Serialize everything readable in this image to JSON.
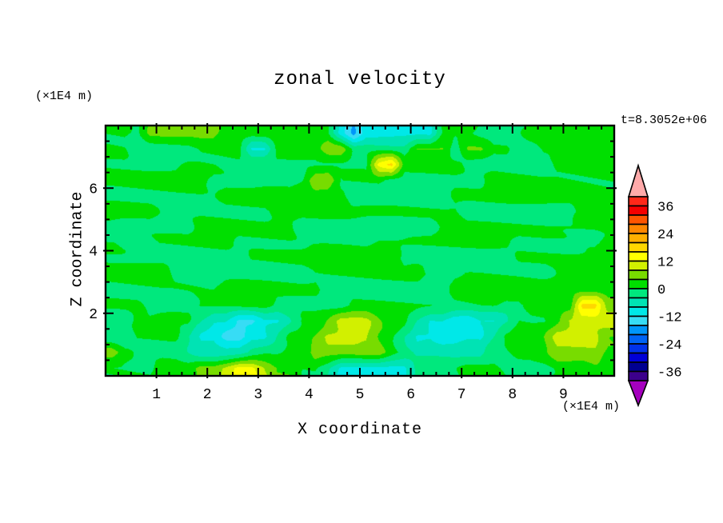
{
  "title": "zonal velocity",
  "annotations": {
    "time_label": "t=8.3052e+06",
    "z_unit_label": "(×1E4 m)",
    "x_unit_label": "(×1E4 m)"
  },
  "axes": {
    "x": {
      "label": "X coordinate",
      "min": 0,
      "max": 10,
      "major_ticks": [
        1,
        2,
        3,
        4,
        5,
        6,
        7,
        8,
        9
      ],
      "minor_step": 0.25
    },
    "z": {
      "label": "Z coordinate",
      "min": 0,
      "max": 8,
      "major_ticks": [
        2,
        4,
        6
      ],
      "minor_step": 0.5
    }
  },
  "chart_data": {
    "type": "heatmap",
    "title": "zonal velocity",
    "xlabel": "X coordinate",
    "ylabel": "Z coordinate",
    "x_range": [
      0,
      10
    ],
    "z_range": [
      0,
      8
    ],
    "axis_unit_scale": "(×1E4 m)",
    "time": "t=8.3052e+06",
    "contour_interval": 4,
    "colorbar": {
      "min": -40,
      "max": 40,
      "step": 4,
      "labels": [
        36,
        24,
        12,
        0,
        -12,
        -24,
        -36
      ],
      "over_arrow_color": "#FFAAAA",
      "under_arrow_color": "#A500BE"
    },
    "palette_low_to_high": [
      "#3C008C",
      "#000091",
      "#0000D7",
      "#0032EB",
      "#0064F5",
      "#0096FA",
      "#37DCF5",
      "#00E8E8",
      "#00E3B4",
      "#00E87D",
      "#00DF00",
      "#78DC00",
      "#D2F000",
      "#FFFF00",
      "#FFD700",
      "#FFAF00",
      "#FF8700",
      "#FF5500",
      "#F50000",
      "#FF2819"
    ],
    "grid_x_start": 0.125,
    "grid_x_step": 0.25,
    "grid_nx": 40,
    "grid_rle": [
      {
        "z": 7.75,
        "runs": [
          [
            2,
            1
          ],
          [
            1,
            -1
          ],
          [
            6,
            5
          ],
          [
            9,
            1
          ],
          [
            1,
            -9
          ],
          [
            1,
            -17
          ],
          [
            6,
            -9
          ],
          [
            3,
            1
          ],
          [
            4,
            -1
          ],
          [
            7,
            1
          ]
        ]
      },
      {
        "z": 7.25,
        "runs": [
          [
            2,
            1
          ],
          [
            5,
            -1
          ],
          [
            4,
            1
          ],
          [
            2,
            -9
          ],
          [
            4,
            1
          ],
          [
            2,
            6
          ],
          [
            5,
            -2
          ],
          [
            3,
            5
          ],
          [
            1,
            -2
          ],
          [
            2,
            5
          ],
          [
            2,
            1
          ],
          [
            2,
            -1
          ],
          [
            6,
            1
          ]
        ]
      },
      {
        "z": 6.75,
        "runs": [
          [
            6,
            -1
          ],
          [
            7,
            1
          ],
          [
            8,
            -1
          ],
          [
            1,
            13
          ],
          [
            1,
            17
          ],
          [
            5,
            1
          ],
          [
            7,
            -1
          ],
          [
            5,
            1
          ]
        ]
      },
      {
        "z": 6.25,
        "runs": [
          [
            8,
            1
          ],
          [
            7,
            -1
          ],
          [
            1,
            1
          ],
          [
            2,
            9
          ],
          [
            4,
            1
          ],
          [
            8,
            -2
          ],
          [
            10,
            1
          ]
        ]
      },
      {
        "z": 5.75,
        "runs": [
          [
            9,
            -1
          ],
          [
            10,
            1
          ],
          [
            8,
            -2
          ],
          [
            13,
            1
          ]
        ]
      },
      {
        "z": 5.25,
        "runs": [
          [
            4,
            1
          ],
          [
            9,
            -1
          ],
          [
            15,
            1
          ],
          [
            9,
            -2
          ],
          [
            3,
            1
          ]
        ]
      },
      {
        "z": 4.75,
        "runs": [
          [
            7,
            -1
          ],
          [
            8,
            1
          ],
          [
            11,
            -2
          ],
          [
            14,
            1
          ]
        ]
      },
      {
        "z": 4.25,
        "runs": [
          [
            10,
            1
          ],
          [
            11,
            -1
          ],
          [
            11,
            1
          ],
          [
            7,
            -1
          ],
          [
            1,
            1
          ]
        ]
      },
      {
        "z": 3.75,
        "runs": [
          [
            11,
            -1
          ],
          [
            12,
            1
          ],
          [
            9,
            -2
          ],
          [
            8,
            1
          ]
        ]
      },
      {
        "z": 3.25,
        "runs": [
          [
            5,
            1
          ],
          [
            11,
            -1
          ],
          [
            9,
            1
          ],
          [
            10,
            -1
          ],
          [
            5,
            1
          ]
        ]
      },
      {
        "z": 2.75,
        "runs": [
          [
            9,
            -1
          ],
          [
            8,
            1
          ],
          [
            10,
            -2
          ],
          [
            13,
            1
          ]
        ]
      },
      {
        "z": 2.25,
        "runs": [
          [
            3,
            1
          ],
          [
            4,
            -1
          ],
          [
            6,
            1
          ],
          [
            6,
            -2
          ],
          [
            12,
            1
          ],
          [
            2,
            -1
          ],
          [
            4,
            1
          ],
          [
            2,
            17
          ],
          [
            1,
            5
          ]
        ]
      },
      {
        "z": 1.75,
        "runs": [
          [
            2,
            -2
          ],
          [
            5,
            1
          ],
          [
            1,
            -4
          ],
          [
            2,
            -8
          ],
          [
            2,
            -13
          ],
          [
            2,
            -8
          ],
          [
            1,
            -4
          ],
          [
            2,
            1
          ],
          [
            1,
            4
          ],
          [
            3,
            9
          ],
          [
            1,
            4
          ],
          [
            2,
            1
          ],
          [
            1,
            -4
          ],
          [
            2,
            -8
          ],
          [
            2,
            -12
          ],
          [
            2,
            -8
          ],
          [
            1,
            -4
          ],
          [
            3,
            1
          ],
          [
            1,
            4
          ],
          [
            3,
            9
          ],
          [
            1,
            11
          ]
        ]
      },
      {
        "z": 1.25,
        "runs": [
          [
            2,
            -3
          ],
          [
            4,
            1
          ],
          [
            1,
            -4
          ],
          [
            2,
            -9
          ],
          [
            2,
            -14
          ],
          [
            2,
            -9
          ],
          [
            1,
            -4
          ],
          [
            2,
            1
          ],
          [
            1,
            4
          ],
          [
            4,
            9
          ],
          [
            1,
            4
          ],
          [
            1,
            1
          ],
          [
            1,
            -4
          ],
          [
            2,
            -9
          ],
          [
            2,
            -11
          ],
          [
            2,
            -9
          ],
          [
            1,
            -4
          ],
          [
            3,
            1
          ],
          [
            1,
            4
          ],
          [
            4,
            10
          ],
          [
            1,
            5
          ]
        ]
      },
      {
        "z": 0.75,
        "runs": [
          [
            1,
            6
          ],
          [
            1,
            1
          ],
          [
            4,
            -1
          ],
          [
            1,
            -3
          ],
          [
            4,
            -6
          ],
          [
            1,
            -3
          ],
          [
            2,
            -1
          ],
          [
            2,
            1
          ],
          [
            6,
            6
          ],
          [
            1,
            1
          ],
          [
            1,
            -2
          ],
          [
            6,
            -5
          ],
          [
            2,
            -1
          ],
          [
            2,
            1
          ],
          [
            1,
            3
          ],
          [
            4,
            7
          ],
          [
            1,
            3
          ]
        ]
      },
      {
        "z": 0.25,
        "runs": [
          [
            4,
            -1
          ],
          [
            3,
            1
          ],
          [
            2,
            5
          ],
          [
            1,
            9
          ],
          [
            2,
            14
          ],
          [
            1,
            9
          ],
          [
            2,
            5
          ],
          [
            2,
            1
          ],
          [
            1,
            -3
          ],
          [
            6,
            -9
          ],
          [
            1,
            -3
          ],
          [
            3,
            -1
          ],
          [
            3,
            1
          ],
          [
            4,
            -1
          ],
          [
            3,
            1
          ],
          [
            2,
            3
          ]
        ]
      }
    ]
  }
}
